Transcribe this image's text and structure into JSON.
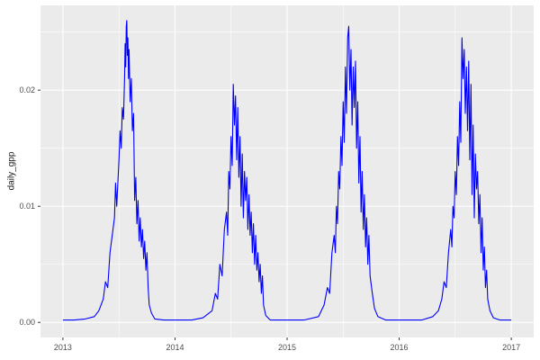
{
  "chart_data": {
    "type": "line",
    "title": "",
    "xlabel": "",
    "ylabel": "daily_gpp",
    "xlim": [
      2012.8,
      2017.2
    ],
    "ylim": [
      -0.0013,
      0.0273
    ],
    "x_major_ticks": [
      2013,
      2014,
      2015,
      2016,
      2017
    ],
    "x_tick_labels": [
      "2013",
      "2014",
      "2015",
      "2016",
      "2017"
    ],
    "x_minor_ticks": [
      2013.5,
      2014.5,
      2015.5,
      2016.5
    ],
    "y_major_ticks": [
      0.0,
      0.01,
      0.02
    ],
    "y_tick_labels": [
      "0.00",
      "0.01",
      "0.02"
    ],
    "y_minor_ticks": [
      0.005,
      0.015,
      0.025
    ],
    "legend": "none",
    "grid": "on",
    "panel_bg": "#EBEBEB",
    "grid_color": "#FFFFFF",
    "line_color": "#0000FF",
    "tick_label_color": "#4D4D4D",
    "series": [
      {
        "name": "daily_gpp",
        "points": [
          [
            2013.0,
            0.0002
          ],
          [
            2013.1,
            0.0002
          ],
          [
            2013.2,
            0.0003
          ],
          [
            2013.28,
            0.0005
          ],
          [
            2013.32,
            0.001
          ],
          [
            2013.36,
            0.002
          ],
          [
            2013.38,
            0.0035
          ],
          [
            2013.4,
            0.003
          ],
          [
            2013.42,
            0.006
          ],
          [
            2013.44,
            0.0075
          ],
          [
            2013.46,
            0.009
          ],
          [
            2013.47,
            0.012
          ],
          [
            2013.48,
            0.01
          ],
          [
            2013.5,
            0.014
          ],
          [
            2013.51,
            0.0165
          ],
          [
            2013.52,
            0.015
          ],
          [
            2013.53,
            0.0185
          ],
          [
            2013.54,
            0.0175
          ],
          [
            2013.55,
            0.021
          ],
          [
            2013.555,
            0.024
          ],
          [
            2013.56,
            0.022
          ],
          [
            2013.565,
            0.0255
          ],
          [
            2013.57,
            0.026
          ],
          [
            2013.575,
            0.023
          ],
          [
            2013.58,
            0.0245
          ],
          [
            2013.585,
            0.021
          ],
          [
            2013.59,
            0.0235
          ],
          [
            2013.6,
            0.019
          ],
          [
            2013.61,
            0.021
          ],
          [
            2013.62,
            0.0165
          ],
          [
            2013.63,
            0.018
          ],
          [
            2013.64,
            0.0105
          ],
          [
            2013.65,
            0.0125
          ],
          [
            2013.66,
            0.0085
          ],
          [
            2013.67,
            0.0105
          ],
          [
            2013.68,
            0.007
          ],
          [
            2013.69,
            0.009
          ],
          [
            2013.7,
            0.0065
          ],
          [
            2013.71,
            0.008
          ],
          [
            2013.72,
            0.0055
          ],
          [
            2013.73,
            0.007
          ],
          [
            2013.74,
            0.0045
          ],
          [
            2013.75,
            0.006
          ],
          [
            2013.76,
            0.003
          ],
          [
            2013.77,
            0.0015
          ],
          [
            2013.79,
            0.0008
          ],
          [
            2013.82,
            0.0003
          ],
          [
            2013.9,
            0.0002
          ],
          [
            2014.0,
            0.0002
          ],
          [
            2014.15,
            0.0002
          ],
          [
            2014.25,
            0.0004
          ],
          [
            2014.33,
            0.001
          ],
          [
            2014.36,
            0.0025
          ],
          [
            2014.38,
            0.002
          ],
          [
            2014.4,
            0.005
          ],
          [
            2014.42,
            0.004
          ],
          [
            2014.44,
            0.008
          ],
          [
            2014.46,
            0.0095
          ],
          [
            2014.47,
            0.0075
          ],
          [
            2014.48,
            0.013
          ],
          [
            2014.49,
            0.0115
          ],
          [
            2014.5,
            0.016
          ],
          [
            2014.51,
            0.0135
          ],
          [
            2014.52,
            0.0205
          ],
          [
            2014.53,
            0.017
          ],
          [
            2014.54,
            0.0195
          ],
          [
            2014.55,
            0.014
          ],
          [
            2014.56,
            0.0185
          ],
          [
            2014.57,
            0.0125
          ],
          [
            2014.58,
            0.016
          ],
          [
            2014.59,
            0.01
          ],
          [
            2014.6,
            0.0145
          ],
          [
            2014.61,
            0.009
          ],
          [
            2014.62,
            0.013
          ],
          [
            2014.63,
            0.0105
          ],
          [
            2014.64,
            0.0125
          ],
          [
            2014.65,
            0.008
          ],
          [
            2014.66,
            0.011
          ],
          [
            2014.67,
            0.0075
          ],
          [
            2014.68,
            0.0095
          ],
          [
            2014.69,
            0.006
          ],
          [
            2014.7,
            0.0085
          ],
          [
            2014.71,
            0.005
          ],
          [
            2014.72,
            0.0075
          ],
          [
            2014.73,
            0.0045
          ],
          [
            2014.74,
            0.006
          ],
          [
            2014.75,
            0.0035
          ],
          [
            2014.76,
            0.005
          ],
          [
            2014.77,
            0.0025
          ],
          [
            2014.78,
            0.004
          ],
          [
            2014.79,
            0.0015
          ],
          [
            2014.81,
            0.0006
          ],
          [
            2014.85,
            0.0002
          ],
          [
            2014.95,
            0.0002
          ],
          [
            2015.0,
            0.0002
          ],
          [
            2015.15,
            0.0002
          ],
          [
            2015.28,
            0.0005
          ],
          [
            2015.33,
            0.0015
          ],
          [
            2015.36,
            0.003
          ],
          [
            2015.38,
            0.0025
          ],
          [
            2015.4,
            0.006
          ],
          [
            2015.42,
            0.0075
          ],
          [
            2015.43,
            0.006
          ],
          [
            2015.44,
            0.01
          ],
          [
            2015.45,
            0.0085
          ],
          [
            2015.46,
            0.013
          ],
          [
            2015.47,
            0.0115
          ],
          [
            2015.48,
            0.016
          ],
          [
            2015.49,
            0.0135
          ],
          [
            2015.5,
            0.019
          ],
          [
            2015.51,
            0.0155
          ],
          [
            2015.52,
            0.022
          ],
          [
            2015.53,
            0.018
          ],
          [
            2015.54,
            0.0245
          ],
          [
            2015.55,
            0.0255
          ],
          [
            2015.56,
            0.02
          ],
          [
            2015.57,
            0.0235
          ],
          [
            2015.58,
            0.017
          ],
          [
            2015.59,
            0.022
          ],
          [
            2015.6,
            0.0185
          ],
          [
            2015.61,
            0.0225
          ],
          [
            2015.62,
            0.015
          ],
          [
            2015.63,
            0.019
          ],
          [
            2015.64,
            0.012
          ],
          [
            2015.65,
            0.016
          ],
          [
            2015.66,
            0.0095
          ],
          [
            2015.67,
            0.013
          ],
          [
            2015.68,
            0.008
          ],
          [
            2015.69,
            0.011
          ],
          [
            2015.7,
            0.0065
          ],
          [
            2015.71,
            0.009
          ],
          [
            2015.72,
            0.005
          ],
          [
            2015.73,
            0.0075
          ],
          [
            2015.74,
            0.004
          ],
          [
            2015.76,
            0.0025
          ],
          [
            2015.78,
            0.0012
          ],
          [
            2015.81,
            0.0005
          ],
          [
            2015.88,
            0.0002
          ],
          [
            2016.0,
            0.0002
          ],
          [
            2016.2,
            0.0002
          ],
          [
            2016.3,
            0.0005
          ],
          [
            2016.35,
            0.001
          ],
          [
            2016.38,
            0.002
          ],
          [
            2016.4,
            0.0035
          ],
          [
            2016.42,
            0.003
          ],
          [
            2016.44,
            0.006
          ],
          [
            2016.46,
            0.008
          ],
          [
            2016.47,
            0.0065
          ],
          [
            2016.48,
            0.01
          ],
          [
            2016.49,
            0.009
          ],
          [
            2016.5,
            0.013
          ],
          [
            2016.51,
            0.011
          ],
          [
            2016.52,
            0.016
          ],
          [
            2016.53,
            0.0135
          ],
          [
            2016.54,
            0.019
          ],
          [
            2016.55,
            0.0155
          ],
          [
            2016.56,
            0.0245
          ],
          [
            2016.57,
            0.021
          ],
          [
            2016.58,
            0.0235
          ],
          [
            2016.59,
            0.018
          ],
          [
            2016.6,
            0.022
          ],
          [
            2016.61,
            0.0165
          ],
          [
            2016.62,
            0.0225
          ],
          [
            2016.63,
            0.014
          ],
          [
            2016.64,
            0.0205
          ],
          [
            2016.65,
            0.011
          ],
          [
            2016.66,
            0.017
          ],
          [
            2016.67,
            0.009
          ],
          [
            2016.68,
            0.0145
          ],
          [
            2016.69,
            0.0115
          ],
          [
            2016.7,
            0.013
          ],
          [
            2016.71,
            0.0085
          ],
          [
            2016.72,
            0.011
          ],
          [
            2016.73,
            0.006
          ],
          [
            2016.74,
            0.009
          ],
          [
            2016.75,
            0.0045
          ],
          [
            2016.76,
            0.0065
          ],
          [
            2016.77,
            0.003
          ],
          [
            2016.78,
            0.0045
          ],
          [
            2016.79,
            0.002
          ],
          [
            2016.81,
            0.001
          ],
          [
            2016.84,
            0.0004
          ],
          [
            2016.9,
            0.0002
          ],
          [
            2017.0,
            0.0002
          ]
        ]
      }
    ]
  }
}
